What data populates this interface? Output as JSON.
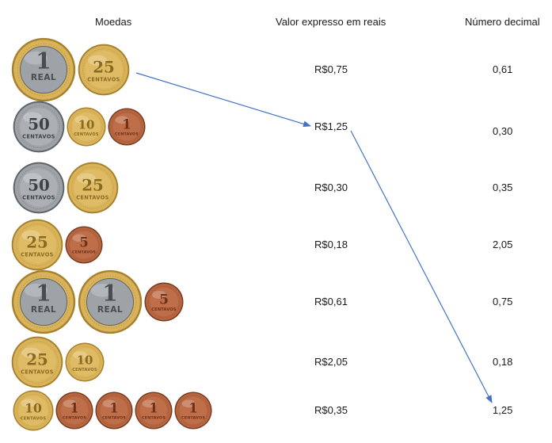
{
  "headers": {
    "coins": "Moedas",
    "value": "Valor expresso em reais",
    "decimal": "Número decimal"
  },
  "coin_labels": {
    "real_text": "REAL",
    "centavos_text": "CENTAVOS"
  },
  "rows": [
    {
      "coins": [
        {
          "denom": "1",
          "kind": "real"
        },
        {
          "denom": "25",
          "kind": "gold"
        }
      ],
      "value": "R$0,75",
      "decimal": "0,61"
    },
    {
      "coins": [
        {
          "denom": "50",
          "kind": "silver"
        },
        {
          "denom": "10",
          "kind": "gold"
        },
        {
          "denom": "1",
          "kind": "copper"
        }
      ],
      "value": "R$1,25",
      "decimal": "0,30"
    },
    {
      "coins": [
        {
          "denom": "50",
          "kind": "silver"
        },
        {
          "denom": "25",
          "kind": "gold"
        }
      ],
      "value": "R$0,30",
      "decimal": "0,35"
    },
    {
      "coins": [
        {
          "denom": "25",
          "kind": "gold"
        },
        {
          "denom": "5",
          "kind": "copper"
        }
      ],
      "value": "R$0,18",
      "decimal": "2,05"
    },
    {
      "coins": [
        {
          "denom": "1",
          "kind": "real"
        },
        {
          "denom": "1",
          "kind": "real"
        },
        {
          "denom": "5",
          "kind": "copper"
        }
      ],
      "value": "R$0,61",
      "decimal": "0,75"
    },
    {
      "coins": [
        {
          "denom": "25",
          "kind": "gold"
        },
        {
          "denom": "10",
          "kind": "gold"
        }
      ],
      "value": "R$2,05",
      "decimal": "0,18"
    },
    {
      "coins": [
        {
          "denom": "10",
          "kind": "gold"
        },
        {
          "denom": "1",
          "kind": "copper"
        },
        {
          "denom": "1",
          "kind": "copper"
        },
        {
          "denom": "1",
          "kind": "copper"
        },
        {
          "denom": "1",
          "kind": "copper"
        }
      ],
      "value": "R$0,35",
      "decimal": "1,25"
    }
  ],
  "colors": {
    "arrow": "#4472c4",
    "gold": "#d9b35a",
    "gold_dark": "#a8812f",
    "silver": "#9ea3a8",
    "silver_dark": "#5f6469",
    "copper": "#b5653f",
    "copper_dark": "#7a3a20"
  }
}
